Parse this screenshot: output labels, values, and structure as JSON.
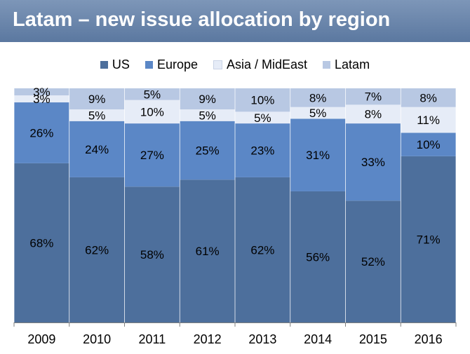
{
  "title": "Latam – new issue allocation by region",
  "legend": [
    {
      "label": "US",
      "color": "#4d6f9c"
    },
    {
      "label": "Europe",
      "color": "#5b87c6"
    },
    {
      "label": "Asia / MidEast",
      "color": "#e6ecf7"
    },
    {
      "label": "Latam",
      "color": "#b8c8e3"
    }
  ],
  "chart_data": {
    "type": "bar",
    "stacked": true,
    "categories": [
      "2009",
      "2010",
      "2011",
      "2012",
      "2013",
      "2014",
      "2015",
      "2016"
    ],
    "series": [
      {
        "name": "US",
        "color": "#4d6f9c",
        "values": [
          68,
          62,
          58,
          61,
          62,
          56,
          52,
          71
        ]
      },
      {
        "name": "Europe",
        "color": "#5b87c6",
        "values": [
          26,
          24,
          27,
          25,
          23,
          31,
          33,
          10
        ]
      },
      {
        "name": "Asia / MidEast",
        "color": "#e6ecf7",
        "values": [
          3,
          5,
          10,
          5,
          5,
          5,
          8,
          11
        ]
      },
      {
        "name": "Latam",
        "color": "#b8c8e3",
        "values": [
          3,
          9,
          5,
          9,
          10,
          8,
          7,
          8
        ]
      }
    ],
    "value_suffix": "%",
    "ylim": [
      0,
      100
    ],
    "grid": false,
    "legend_position": "top",
    "title": "Latam – new issue allocation by region"
  }
}
